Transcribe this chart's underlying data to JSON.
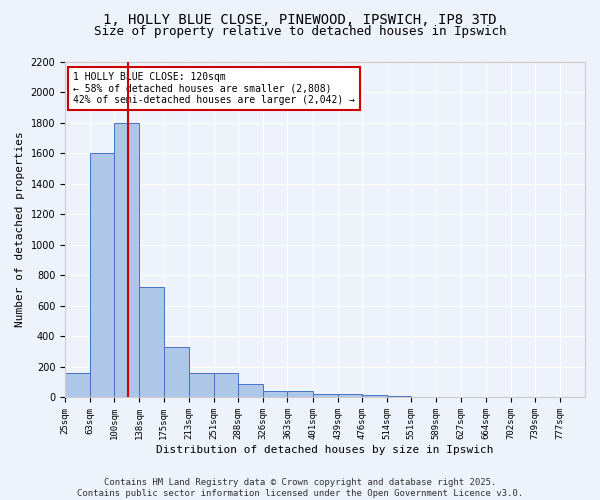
{
  "title_line1": "1, HOLLY BLUE CLOSE, PINEWOOD, IPSWICH, IP8 3TD",
  "title_line2": "Size of property relative to detached houses in Ipswich",
  "xlabel": "Distribution of detached houses by size in Ipswich",
  "ylabel": "Number of detached properties",
  "bar_edges": [
    25,
    63,
    100,
    138,
    175,
    213,
    251,
    288,
    326,
    363,
    401,
    439,
    476,
    514,
    551,
    589,
    627,
    664,
    702,
    739,
    777
  ],
  "bar_heights": [
    160,
    1600,
    1800,
    725,
    330,
    160,
    160,
    85,
    45,
    45,
    25,
    20,
    15,
    10,
    5,
    5,
    3,
    3,
    3,
    3
  ],
  "bar_color": "#aec6e8",
  "bar_edge_color": "#4472c4",
  "background_color": "#eef2fb",
  "grid_color": "#ffffff",
  "vline_x": 120,
  "vline_color": "#cc0000",
  "annotation_text": "1 HOLLY BLUE CLOSE: 120sqm\n← 58% of detached houses are smaller (2,808)\n42% of semi-detached houses are larger (2,042) →",
  "annotation_box_color": "#cc0000",
  "tick_labels": [
    "25sqm",
    "63sqm",
    "100sqm",
    "138sqm",
    "175sqm",
    "213sqm",
    "251sqm",
    "288sqm",
    "326sqm",
    "363sqm",
    "401sqm",
    "439sqm",
    "476sqm",
    "514sqm",
    "551sqm",
    "589sqm",
    "627sqm",
    "664sqm",
    "702sqm",
    "739sqm",
    "777sqm"
  ],
  "ylim": [
    0,
    2200
  ],
  "yticks": [
    0,
    200,
    400,
    600,
    800,
    1000,
    1200,
    1400,
    1600,
    1800,
    2000,
    2200
  ],
  "footnote": "Contains HM Land Registry data © Crown copyright and database right 2025.\nContains public sector information licensed under the Open Government Licence v3.0.",
  "title_fontsize": 10,
  "subtitle_fontsize": 9,
  "axis_label_fontsize": 8,
  "tick_fontsize": 6.5,
  "footnote_fontsize": 6.5,
  "annotation_fontsize": 7
}
